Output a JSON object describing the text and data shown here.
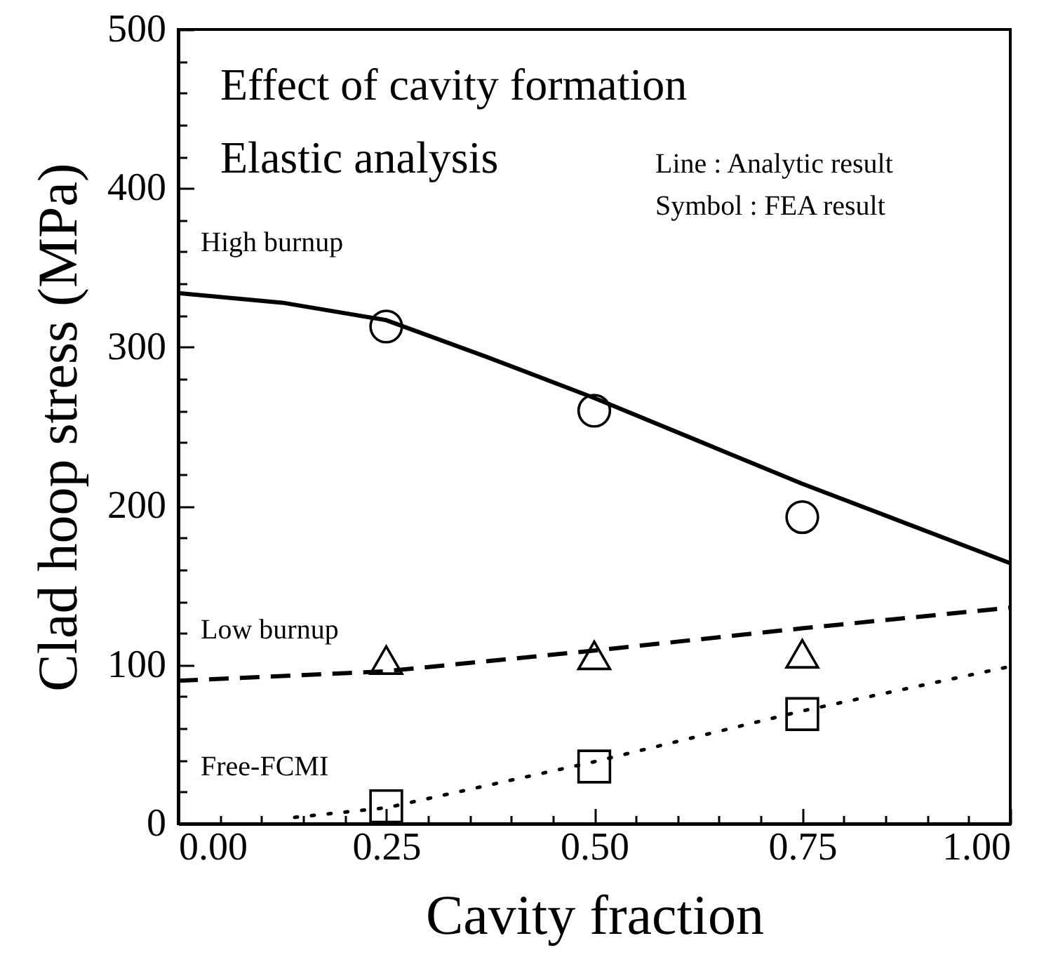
{
  "chart_data": {
    "type": "line",
    "xlabel": "Cavity fraction",
    "ylabel": "Clad hoop stress (MPa)",
    "annotations": [
      "Effect of cavity formation",
      "Elastic analysis",
      "Line : Analytic result",
      "Symbol : FEA result"
    ],
    "xlim": [
      0,
      1
    ],
    "ylim": [
      0,
      500
    ],
    "xticks": [
      {
        "value": 0,
        "label": "0.00"
      },
      {
        "value": 0.05,
        "label": null
      },
      {
        "value": 0.1,
        "label": null
      },
      {
        "value": 0.15,
        "label": null
      },
      {
        "value": 0.2,
        "label": null
      },
      {
        "value": 0.25,
        "label": "0.25"
      },
      {
        "value": 0.3,
        "label": null
      },
      {
        "value": 0.35,
        "label": null
      },
      {
        "value": 0.4,
        "label": null
      },
      {
        "value": 0.45,
        "label": null
      },
      {
        "value": 0.5,
        "label": "0.50"
      },
      {
        "value": 0.55,
        "label": null
      },
      {
        "value": 0.6,
        "label": null
      },
      {
        "value": 0.65,
        "label": null
      },
      {
        "value": 0.7,
        "label": null
      },
      {
        "value": 0.75,
        "label": "0.75"
      },
      {
        "value": 0.8,
        "label": null
      },
      {
        "value": 0.85,
        "label": null
      },
      {
        "value": 0.9,
        "label": null
      },
      {
        "value": 0.95,
        "label": null
      },
      {
        "value": 1,
        "label": "1.00"
      }
    ],
    "yticks": [
      0,
      {
        "value": 20,
        "label": null
      },
      {
        "value": 40,
        "label": null
      },
      {
        "value": 60,
        "label": null
      },
      {
        "value": 80,
        "label": null
      },
      100,
      {
        "value": 120,
        "label": null
      },
      {
        "value": 140,
        "label": null
      },
      {
        "value": 160,
        "label": null
      },
      {
        "value": 180,
        "label": null
      },
      200,
      {
        "value": 220,
        "label": null
      },
      {
        "value": 240,
        "label": null
      },
      {
        "value": 260,
        "label": null
      },
      {
        "value": 280,
        "label": null
      },
      300,
      {
        "value": 320,
        "label": null
      },
      {
        "value": 340,
        "label": null
      },
      {
        "value": 360,
        "label": null
      },
      {
        "value": 380,
        "label": null
      },
      400,
      {
        "value": 420,
        "label": null
      },
      {
        "value": 440,
        "label": null
      },
      {
        "value": 460,
        "label": null
      },
      {
        "value": 480,
        "label": null
      },
      500
    ],
    "grid": false,
    "series": [
      {
        "name": "High burnup",
        "type": "line",
        "line_style": "solid",
        "marker": "none",
        "color": "#000000",
        "x": [
          0,
          0.125,
          0.25,
          0.375,
          0.5,
          0.625,
          0.75,
          0.875,
          1
        ],
        "values": [
          334,
          328,
          317,
          293,
          268,
          241,
          214,
          189,
          164
        ]
      },
      {
        "name": "Low burnup",
        "type": "line",
        "line_style": "dashed",
        "marker": "none",
        "color": "#000000",
        "x": [
          0,
          0.25,
          0.5,
          0.75,
          1
        ],
        "values": [
          90,
          96,
          109,
          123,
          136
        ]
      },
      {
        "name": "Free-FCMI",
        "type": "line",
        "line_style": "dotted",
        "marker": "none",
        "color": "#000000",
        "x": [
          0.14,
          0.25,
          0.5,
          0.75,
          1
        ],
        "values": [
          4,
          10,
          39,
          71,
          99
        ]
      },
      {
        "type": "scatter",
        "marker": "circle",
        "color": "#000000",
        "x": [
          0.25,
          0.5,
          0.75
        ],
        "values": [
          313,
          260,
          193
        ]
      },
      {
        "type": "scatter",
        "marker": "triangle",
        "color": "#000000",
        "x": [
          0.25,
          0.5,
          0.75
        ],
        "values": [
          103,
          106,
          107
        ]
      },
      {
        "type": "scatter",
        "marker": "square",
        "color": "#000000",
        "x": [
          0.25,
          0.5,
          0.75
        ],
        "values": [
          11,
          36,
          69
        ]
      }
    ]
  }
}
